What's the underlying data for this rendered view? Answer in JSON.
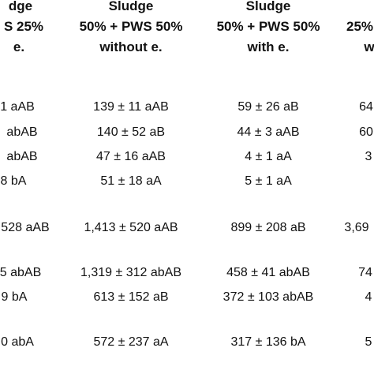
{
  "table": {
    "columns": [
      {
        "header": [
          "dge",
          "S 25%",
          "e."
        ]
      },
      {
        "header": [
          "Sludge",
          "50% + PWS 50%",
          "without e."
        ]
      },
      {
        "header": [
          "Sludge",
          "50% + PWS 50%",
          "with e."
        ]
      },
      {
        "header": [
          "",
          "25%",
          "w"
        ]
      }
    ],
    "rows": [
      {
        "cells": [
          "1 aAB",
          "139 ± 11 aAB",
          "59 ± 26 aB",
          "64"
        ]
      },
      {
        "cells": [
          "abAB",
          "140 ± 52 aB",
          "44 ± 3 aAB",
          "60"
        ]
      },
      {
        "cells": [
          "abAB",
          "47 ± 16 aAB",
          "4 ± 1 aA",
          "3"
        ]
      },
      {
        "cells": [
          "8 bA",
          "51 ± 18 aA",
          "5 ± 1 aA",
          ""
        ]
      },
      {
        "cells": [
          "528 aAB",
          "1,413 ± 520 aAB",
          "899 ± 208 aB",
          "3,69"
        ]
      },
      {
        "cells": [
          "5 abAB",
          "1,319 ± 312 abAB",
          "458 ± 41 abAB",
          "74"
        ]
      },
      {
        "cells": [
          "9 bA",
          "613 ± 152 aB",
          "372 ± 103 abAB",
          "4"
        ]
      },
      {
        "cells": [
          "0 abA",
          "572 ± 237 aA",
          "317 ± 136 bA",
          "5"
        ]
      }
    ]
  }
}
